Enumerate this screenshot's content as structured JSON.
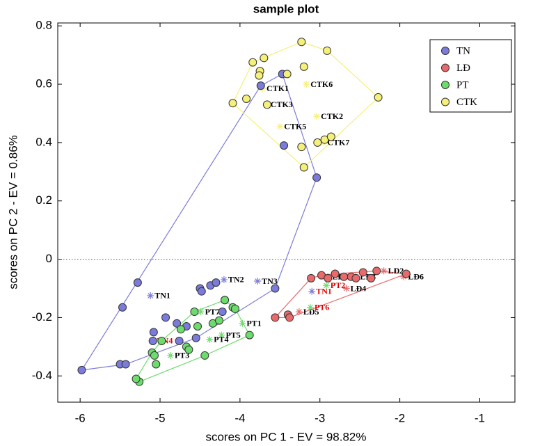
{
  "chart_data": {
    "type": "scatter",
    "title": "sample plot",
    "x_label": "scores on PC 1 - EV = 98.82%",
    "y_label": "scores on PC 2 - EV = 0.86%",
    "xlim": [
      -6.28,
      -0.56
    ],
    "ylim": [
      -0.49,
      0.81
    ],
    "xticks": [
      -6,
      -5,
      -4,
      -3,
      -2,
      -1
    ],
    "yticks": [
      -0.4,
      -0.2,
      0,
      0.2,
      0.4,
      0.6,
      0.8
    ],
    "reference_line": 0,
    "convex_hulls": true,
    "legend_position": "upper right",
    "series": [
      {
        "name": "TN",
        "color": "#7b7bdb",
        "x": [
          -5.98,
          -5.47,
          -5.28,
          -5.5,
          -5.43,
          -5.08,
          -4.93,
          -5.09,
          -4.79,
          -4.76,
          -4.67,
          -4.5,
          -4.48,
          -4.37,
          -4.3,
          -4.55,
          -4.22,
          -4.19,
          -3.74,
          -3.47,
          -3.45,
          -3.04,
          -3.56
        ],
        "values": [
          -0.38,
          -0.165,
          -0.08,
          -0.36,
          -0.36,
          -0.25,
          -0.2,
          -0.28,
          -0.22,
          -0.28,
          -0.23,
          -0.1,
          -0.11,
          -0.09,
          -0.08,
          -0.27,
          -0.18,
          -0.14,
          0.595,
          0.635,
          0.39,
          0.28,
          -0.1
        ]
      },
      {
        "name": "LĐ",
        "color": "#e86a6a",
        "x": [
          -3.56,
          -3.4,
          -3.38,
          -3.11,
          -2.98,
          -2.9,
          -2.81,
          -2.61,
          -2.55,
          -2.46,
          -2.36,
          -2.29,
          -1.92,
          -2.7
        ],
        "values": [
          -0.2,
          -0.19,
          -0.2,
          -0.065,
          -0.055,
          -0.065,
          -0.05,
          -0.06,
          -0.065,
          -0.045,
          -0.065,
          -0.04,
          -0.05,
          -0.06
        ]
      },
      {
        "name": "PT",
        "color": "#6ddc6d",
        "x": [
          -5.26,
          -5.3,
          -5.1,
          -5.07,
          -5.05,
          -4.98,
          -4.74,
          -4.67,
          -4.64,
          -4.57,
          -4.53,
          -4.44,
          -4.34,
          -4.26,
          -4.19,
          -4.09,
          -4.06,
          -3.88
        ],
        "values": [
          -0.42,
          -0.41,
          -0.32,
          -0.33,
          -0.36,
          -0.28,
          -0.24,
          -0.3,
          -0.31,
          -0.18,
          -0.23,
          -0.33,
          -0.22,
          -0.21,
          -0.14,
          -0.165,
          -0.17,
          -0.26
        ]
      },
      {
        "name": "CTK",
        "color": "#f5f07a",
        "x": [
          -4.09,
          -3.92,
          -3.84,
          -3.75,
          -3.76,
          -3.7,
          -3.23,
          -3.2,
          -2.91,
          -3.66,
          -3.41,
          -3.23,
          -3.2,
          -2.94,
          -2.86,
          -3.03,
          -2.27
        ],
        "values": [
          0.535,
          0.55,
          0.675,
          0.645,
          0.63,
          0.69,
          0.745,
          0.66,
          0.715,
          0.53,
          0.635,
          0.385,
          0.315,
          0.41,
          0.42,
          0.4,
          0.555
        ]
      }
    ],
    "labeled_points": [
      {
        "label": "CTK1",
        "x": -3.72,
        "y": 0.585,
        "color": "#f5f07a",
        "label_color": "#000000"
      },
      {
        "label": "CTK3",
        "x": -3.67,
        "y": 0.53,
        "color": "#f5f07a",
        "label_color": "#000000"
      },
      {
        "label": "CTK6",
        "x": -3.17,
        "y": 0.6,
        "color": "#f5f07a",
        "label_color": "#000000"
      },
      {
        "label": "CTK2",
        "x": -3.04,
        "y": 0.49,
        "color": "#f5f07a",
        "label_color": "#000000"
      },
      {
        "label": "CTK5",
        "x": -3.5,
        "y": 0.455,
        "color": "#f5f07a",
        "label_color": "#000000"
      },
      {
        "label": "CTK7",
        "x": -2.96,
        "y": 0.4,
        "color": "#f5f07a",
        "label_color": "#000000"
      },
      {
        "label": "TN1",
        "x": -5.12,
        "y": -0.125,
        "color": "#7b7bdb",
        "label_color": "#000000"
      },
      {
        "label": "TN2",
        "x": -4.2,
        "y": -0.07,
        "color": "#7b7bdb",
        "label_color": "#000000"
      },
      {
        "label": "TN3",
        "x": -3.78,
        "y": -0.075,
        "color": "#7b7bdb",
        "label_color": "#000000"
      },
      {
        "label": "TN4",
        "x": -5.09,
        "y": -0.28,
        "color": "#7b7bdb",
        "label_color": "#e00000"
      },
      {
        "label": "PT7",
        "x": -4.49,
        "y": -0.18,
        "color": "#6ddc6d",
        "label_color": "#000000"
      },
      {
        "label": "PT5",
        "x": -4.23,
        "y": -0.26,
        "color": "#6ddc6d",
        "label_color": "#000000"
      },
      {
        "label": "PT1",
        "x": -3.97,
        "y": -0.22,
        "color": "#6ddc6d",
        "label_color": "#000000"
      },
      {
        "label": "PT4",
        "x": -4.38,
        "y": -0.275,
        "color": "#6ddc6d",
        "label_color": "#000000"
      },
      {
        "label": "PT3",
        "x": -4.87,
        "y": -0.33,
        "color": "#6ddc6d",
        "label_color": "#000000"
      },
      {
        "label": "LĐ1",
        "x": -2.9,
        "y": -0.06,
        "color": "#e86a6a",
        "label_color": "#000000"
      },
      {
        "label": "LĐ3",
        "x": -2.55,
        "y": -0.06,
        "color": "#e86a6a",
        "label_color": "#000000"
      },
      {
        "label": "LĐ2",
        "x": -2.2,
        "y": -0.04,
        "color": "#e86a6a",
        "label_color": "#000000"
      },
      {
        "label": "LĐ6",
        "x": -1.95,
        "y": -0.06,
        "color": "#e86a6a",
        "label_color": "#000000"
      },
      {
        "label": "LĐ4",
        "x": -2.67,
        "y": -0.1,
        "color": "#e86a6a",
        "label_color": "#000000"
      },
      {
        "label": "LĐ5",
        "x": -3.26,
        "y": -0.18,
        "color": "#e86a6a",
        "label_color": "#000000"
      },
      {
        "label": "TN1",
        "x": -3.1,
        "y": -0.11,
        "color": "#7b7bdb",
        "label_color": "#e00000"
      },
      {
        "label": "PT2",
        "x": -2.92,
        "y": -0.09,
        "color": "#6ddc6d",
        "label_color": "#e00000"
      },
      {
        "label": "PT6",
        "x": -3.12,
        "y": -0.165,
        "color": "#6ddc6d",
        "label_color": "#e00000"
      }
    ]
  }
}
